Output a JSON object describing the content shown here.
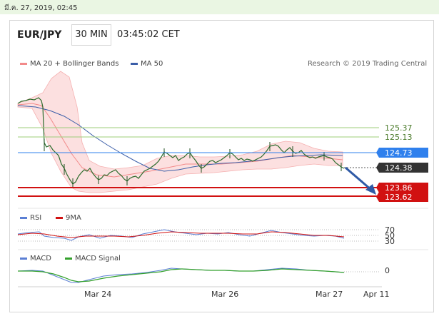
{
  "timestamp": "มี.ค. 27, 2019, 02:45",
  "header": {
    "symbol": "EUR/JPY",
    "timeframe": "30 MIN",
    "time": "03:45:02 CET"
  },
  "legend_main": [
    {
      "label": "MA 20 + Bollinger Bands",
      "color": "#f28a8a"
    },
    {
      "label": "MA 50",
      "color": "#3b5ea8"
    }
  ],
  "credit": "Research © 2019 Trading Central",
  "legend_rsi": [
    {
      "label": "RSI",
      "color": "#5b7fd4"
    },
    {
      "label": "9MA",
      "color": "#d11111"
    }
  ],
  "legend_macd": [
    {
      "label": "MACD",
      "color": "#5b7fd4"
    },
    {
      "label": "MACD Signal",
      "color": "#33a02c"
    }
  ],
  "price_levels": [
    {
      "value": "125.37",
      "style": "green-line"
    },
    {
      "value": "125.13",
      "style": "green-line"
    },
    {
      "value": "124.73",
      "style": "blue-badge"
    },
    {
      "value": "124.38",
      "style": "dark-badge"
    },
    {
      "value": "123.86",
      "style": "red-badge"
    },
    {
      "value": "123.62",
      "style": "red-badge"
    }
  ],
  "rsi_levels": [
    "70",
    "50",
    "30"
  ],
  "macd_level": "0",
  "x_ticks": [
    "Mar 24",
    "Mar 26",
    "Mar 27",
    "Apr 11"
  ],
  "colors": {
    "green_line": "#9ccc7a",
    "blue_line": "#2f80ed",
    "red_line": "#d11111",
    "band_fill": "#fbd6d6",
    "candle": "#2b6b2b",
    "arrow": "#2f5aa6"
  }
}
